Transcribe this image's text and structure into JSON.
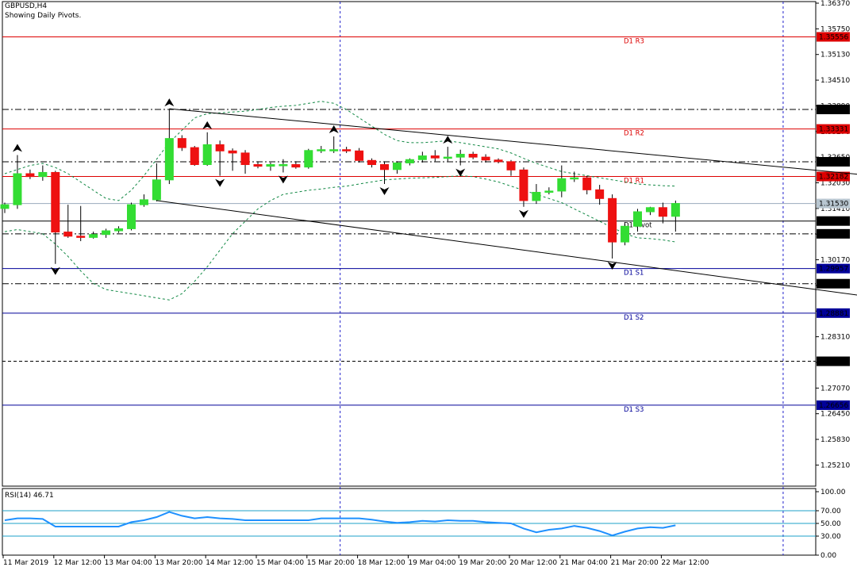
{
  "header": {
    "symbol": "GBPUSD,H4",
    "indicator_note": "Showing Daily Pivots.",
    "rsi_label": "RSI(14) 46.71"
  },
  "colors": {
    "bull": "#33dd33",
    "bear": "#ee1111",
    "resistance": "#dd0000",
    "support": "#000099",
    "pivot": "#000000",
    "envelope": "#118844",
    "rsi_line": "#1e90ff",
    "rsi_level": "#1ea0c8",
    "session_sep": "#2222cc"
  },
  "chart_data": {
    "type": "candlestick",
    "symbol": "GBPUSD",
    "timeframe": "H4",
    "ylim": [
      1.247,
      1.3637
    ],
    "price_ticks": [
      1.3637,
      1.3575,
      1.3513,
      1.3451,
      1.3389,
      1.3327,
      1.3265,
      1.3203,
      1.3141,
      1.3079,
      1.3017,
      1.2955,
      1.2893,
      1.2831,
      1.2769,
      1.2707,
      1.2645,
      1.2583,
      1.2521
    ],
    "price_tick_labels": [
      "1.36370",
      "1.35750",
      "1.35130",
      "1.34510",
      "1.33890",
      "1.33270",
      "1.32650",
      "1.32030",
      "1.31410",
      "1.30790",
      "1.30170",
      "1.29550",
      "1.28930",
      "1.28310",
      "1.27690",
      "1.27070",
      "1.26450",
      "1.25830",
      "1.25210"
    ],
    "x_labels": [
      "11 Mar 2019",
      "12 Mar 12:00",
      "13 Mar 04:00",
      "13 Mar 20:00",
      "14 Mar 12:00",
      "15 Mar 04:00",
      "15 Mar 20:00",
      "18 Mar 12:00",
      "19 Mar 04:00",
      "19 Mar 20:00",
      "20 Mar 12:00",
      "21 Mar 04:00",
      "21 Mar 20:00",
      "22 Mar 12:00"
    ],
    "candles": [
      {
        "o": 1.3141,
        "h": 1.3155,
        "l": 1.313,
        "c": 1.315
      },
      {
        "o": 1.315,
        "h": 1.327,
        "l": 1.314,
        "c": 1.3225
      },
      {
        "o": 1.3225,
        "h": 1.3235,
        "l": 1.3212,
        "c": 1.3218
      },
      {
        "o": 1.3218,
        "h": 1.3245,
        "l": 1.3208,
        "c": 1.3228
      },
      {
        "o": 1.3228,
        "h": 1.3232,
        "l": 1.3007,
        "c": 1.3084
      },
      {
        "o": 1.3084,
        "h": 1.315,
        "l": 1.307,
        "c": 1.3074
      },
      {
        "o": 1.3074,
        "h": 1.3147,
        "l": 1.3062,
        "c": 1.3071
      },
      {
        "o": 1.3071,
        "h": 1.3085,
        "l": 1.3068,
        "c": 1.3078
      },
      {
        "o": 1.3078,
        "h": 1.3092,
        "l": 1.307,
        "c": 1.3087
      },
      {
        "o": 1.3087,
        "h": 1.3098,
        "l": 1.3082,
        "c": 1.3092
      },
      {
        "o": 1.3092,
        "h": 1.3155,
        "l": 1.3088,
        "c": 1.315
      },
      {
        "o": 1.315,
        "h": 1.3175,
        "l": 1.3145,
        "c": 1.3162
      },
      {
        "o": 1.3162,
        "h": 1.325,
        "l": 1.3158,
        "c": 1.321
      },
      {
        "o": 1.321,
        "h": 1.338,
        "l": 1.32,
        "c": 1.331
      },
      {
        "o": 1.331,
        "h": 1.3318,
        "l": 1.328,
        "c": 1.3288
      },
      {
        "o": 1.3288,
        "h": 1.3292,
        "l": 1.3244,
        "c": 1.3247
      },
      {
        "o": 1.3247,
        "h": 1.3325,
        "l": 1.3244,
        "c": 1.3295
      },
      {
        "o": 1.3295,
        "h": 1.3305,
        "l": 1.322,
        "c": 1.328
      },
      {
        "o": 1.328,
        "h": 1.3286,
        "l": 1.3232,
        "c": 1.3275
      },
      {
        "o": 1.3275,
        "h": 1.3282,
        "l": 1.3225,
        "c": 1.3247
      },
      {
        "o": 1.3247,
        "h": 1.3255,
        "l": 1.3238,
        "c": 1.3243
      },
      {
        "o": 1.3243,
        "h": 1.3252,
        "l": 1.3232,
        "c": 1.3247
      },
      {
        "o": 1.3247,
        "h": 1.326,
        "l": 1.3228,
        "c": 1.3247
      },
      {
        "o": 1.3247,
        "h": 1.3255,
        "l": 1.3237,
        "c": 1.3241
      },
      {
        "o": 1.3241,
        "h": 1.3285,
        "l": 1.3237,
        "c": 1.3281
      },
      {
        "o": 1.3281,
        "h": 1.3292,
        "l": 1.3275,
        "c": 1.3283
      },
      {
        "o": 1.3283,
        "h": 1.3315,
        "l": 1.3275,
        "c": 1.3283
      },
      {
        "o": 1.3283,
        "h": 1.329,
        "l": 1.3275,
        "c": 1.328
      },
      {
        "o": 1.328,
        "h": 1.3287,
        "l": 1.3252,
        "c": 1.3257
      },
      {
        "o": 1.3257,
        "h": 1.3262,
        "l": 1.324,
        "c": 1.3247
      },
      {
        "o": 1.3247,
        "h": 1.3255,
        "l": 1.32,
        "c": 1.3235
      },
      {
        "o": 1.3235,
        "h": 1.3255,
        "l": 1.3225,
        "c": 1.3251
      },
      {
        "o": 1.3251,
        "h": 1.3262,
        "l": 1.3245,
        "c": 1.3259
      },
      {
        "o": 1.3259,
        "h": 1.3278,
        "l": 1.3252,
        "c": 1.3268
      },
      {
        "o": 1.3268,
        "h": 1.3282,
        "l": 1.3255,
        "c": 1.3263
      },
      {
        "o": 1.3263,
        "h": 1.329,
        "l": 1.3255,
        "c": 1.3265
      },
      {
        "o": 1.3265,
        "h": 1.3283,
        "l": 1.3245,
        "c": 1.3272
      },
      {
        "o": 1.3272,
        "h": 1.3278,
        "l": 1.326,
        "c": 1.3265
      },
      {
        "o": 1.3265,
        "h": 1.3272,
        "l": 1.3252,
        "c": 1.3258
      },
      {
        "o": 1.3258,
        "h": 1.3262,
        "l": 1.325,
        "c": 1.3254
      },
      {
        "o": 1.3254,
        "h": 1.3258,
        "l": 1.322,
        "c": 1.3234
      },
      {
        "o": 1.3234,
        "h": 1.324,
        "l": 1.3145,
        "c": 1.316
      },
      {
        "o": 1.316,
        "h": 1.32,
        "l": 1.3152,
        "c": 1.318
      },
      {
        "o": 1.318,
        "h": 1.3192,
        "l": 1.3175,
        "c": 1.3183
      },
      {
        "o": 1.3183,
        "h": 1.3245,
        "l": 1.3168,
        "c": 1.3213
      },
      {
        "o": 1.3213,
        "h": 1.323,
        "l": 1.3205,
        "c": 1.3215
      },
      {
        "o": 1.3215,
        "h": 1.322,
        "l": 1.3175,
        "c": 1.3186
      },
      {
        "o": 1.3186,
        "h": 1.3198,
        "l": 1.315,
        "c": 1.3165
      },
      {
        "o": 1.3165,
        "h": 1.3175,
        "l": 1.302,
        "c": 1.306
      },
      {
        "o": 1.306,
        "h": 1.3105,
        "l": 1.3052,
        "c": 1.3098
      },
      {
        "o": 1.3098,
        "h": 1.314,
        "l": 1.3085,
        "c": 1.3133
      },
      {
        "o": 1.3133,
        "h": 1.3145,
        "l": 1.3125,
        "c": 1.3143
      },
      {
        "o": 1.3143,
        "h": 1.3155,
        "l": 1.3105,
        "c": 1.3122
      },
      {
        "o": 1.3122,
        "h": 1.316,
        "l": 1.3085,
        "c": 1.3153
      }
    ],
    "pivot_levels": [
      {
        "name": "D1 R3",
        "value": 1.35556,
        "label": "1.35556",
        "kind": "resistance"
      },
      {
        "name": "D1 R2",
        "value": 1.33331,
        "label": "1.33331",
        "kind": "resistance"
      },
      {
        "name": "D1 R1",
        "value": 1.32182,
        "label": "1.32182",
        "kind": "resistance"
      },
      {
        "name": "D1 Pivot",
        "value": 1.31106,
        "label": "1.31106",
        "kind": "pivot"
      },
      {
        "name": "D1 S1",
        "value": 1.29957,
        "label": "1.29957",
        "kind": "support"
      },
      {
        "name": "D1 S2",
        "value": 1.28881,
        "label": "1.28881",
        "kind": "support"
      },
      {
        "name": "D1 S3",
        "value": 1.26656,
        "label": "1.26656",
        "kind": "support"
      }
    ],
    "other_levels": [
      {
        "value": 1.33802,
        "label": "1.33802",
        "style": "dashdot"
      },
      {
        "value": 1.32538,
        "label": "1.32538",
        "style": "dashdot"
      },
      {
        "value": 1.3153,
        "label": "1.31530",
        "style": "current-price"
      },
      {
        "value": 1.30797,
        "label": "1.30797",
        "style": "dashdot"
      },
      {
        "value": 1.29592,
        "label": "1.29592",
        "style": "dashdot"
      },
      {
        "value": 1.27717,
        "label": "1.27717",
        "style": "dashed"
      }
    ],
    "channel_lines": [
      {
        "from": {
          "bar": 13,
          "price": 1.3382
        },
        "to": {
          "bar": 69,
          "price": 1.3219
        }
      },
      {
        "from": {
          "bar": 12,
          "price": 1.316
        },
        "to": {
          "bar": 69,
          "price": 1.2925
        }
      }
    ],
    "envelope_upper": [
      1.3225,
      1.3235,
      1.3245,
      1.325,
      1.324,
      1.3225,
      1.3205,
      1.3185,
      1.3165,
      1.316,
      1.3185,
      1.322,
      1.326,
      1.33,
      1.333,
      1.336,
      1.337,
      1.3372,
      1.3374,
      1.3376,
      1.338,
      1.3385,
      1.3388,
      1.339,
      1.3395,
      1.34,
      1.3395,
      1.338,
      1.336,
      1.334,
      1.332,
      1.3305,
      1.33,
      1.33,
      1.3302,
      1.3305,
      1.33,
      1.3295,
      1.329,
      1.3285,
      1.3275,
      1.3262,
      1.325,
      1.324,
      1.323,
      1.3225,
      1.322,
      1.3215,
      1.321,
      1.3205,
      1.32,
      1.3198,
      1.3196,
      1.3195
    ],
    "envelope_lower": [
      1.3085,
      1.309,
      1.3085,
      1.308,
      1.3055,
      1.3025,
      1.299,
      1.296,
      1.2945,
      1.294,
      1.2935,
      1.293,
      1.2925,
      1.292,
      1.2935,
      1.2965,
      1.3,
      1.304,
      1.308,
      1.311,
      1.314,
      1.316,
      1.3175,
      1.318,
      1.3185,
      1.3188,
      1.3192,
      1.3195,
      1.32,
      1.3205,
      1.321,
      1.3212,
      1.3214,
      1.3215,
      1.3216,
      1.3218,
      1.322,
      1.3218,
      1.3212,
      1.3205,
      1.3195,
      1.3185,
      1.3175,
      1.3165,
      1.3155,
      1.314,
      1.3125,
      1.311,
      1.3095,
      1.308,
      1.307,
      1.3068,
      1.3065,
      1.306
    ],
    "envelope_start_bar": 0,
    "signal_arrows": [
      {
        "bar": 1,
        "dir": "up",
        "price": 1.327
      },
      {
        "bar": 4,
        "dir": "down",
        "price": 1.3007
      },
      {
        "bar": 13,
        "dir": "up",
        "price": 1.338
      },
      {
        "bar": 16,
        "dir": "up",
        "price": 1.3325
      },
      {
        "bar": 17,
        "dir": "down",
        "price": 1.322
      },
      {
        "bar": 22,
        "dir": "down",
        "price": 1.3228
      },
      {
        "bar": 26,
        "dir": "up",
        "price": 1.3315
      },
      {
        "bar": 30,
        "dir": "down",
        "price": 1.32
      },
      {
        "bar": 35,
        "dir": "up",
        "price": 1.329
      },
      {
        "bar": 36,
        "dir": "down",
        "price": 1.3245
      },
      {
        "bar": 41,
        "dir": "down",
        "price": 1.3145
      },
      {
        "bar": 48,
        "dir": "down",
        "price": 1.302
      }
    ],
    "session_separators_bar": [
      26.5,
      61.5
    ],
    "rsi": {
      "name": "RSI(14)",
      "current": 46.71,
      "ylim": [
        0,
        100
      ],
      "ticks": [
        100,
        70,
        50,
        30,
        0
      ],
      "tick_labels": [
        "100.00",
        "70.00",
        "50.00",
        "30.00",
        "0.00"
      ],
      "levels": [
        70,
        50,
        30
      ],
      "values": [
        55,
        58,
        58,
        57,
        45,
        45,
        45,
        45,
        45,
        45,
        52,
        55,
        60,
        68,
        62,
        58,
        60,
        58,
        57,
        55,
        55,
        55,
        55,
        55,
        55,
        58,
        58,
        58,
        58,
        56,
        53,
        51,
        52,
        54,
        53,
        55,
        54,
        54,
        52,
        51,
        50,
        42,
        36,
        40,
        42,
        46,
        43,
        38,
        31,
        37,
        42,
        44,
        43,
        47
      ]
    }
  }
}
